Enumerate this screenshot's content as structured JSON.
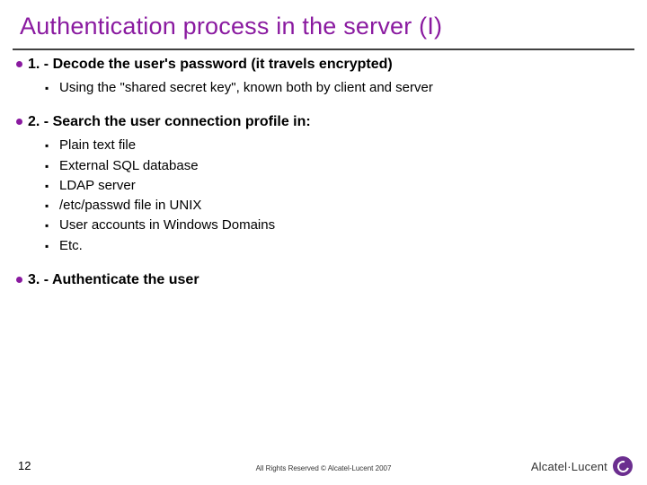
{
  "colors": {
    "accent": "#8a1aa0",
    "rule": "#414141",
    "text": "#000000",
    "brand_icon_bg": "#6b2e8f",
    "brand_text": "#333333"
  },
  "title": "Authentication process in the server (I)",
  "points": [
    {
      "label": "1. - Decode the user's password (it travels encrypted)",
      "subitems": [
        "Using the \"shared secret key\", known both by client and server"
      ]
    },
    {
      "label": "2. - Search the user connection profile in:",
      "subitems": [
        "Plain text file",
        "External SQL database",
        "LDAP server",
        "/etc/passwd file in UNIX",
        "User accounts in Windows Domains",
        "Etc."
      ]
    },
    {
      "label": "3. - Authenticate the user",
      "subitems": []
    }
  ],
  "page_number": "12",
  "copyright": "All Rights Reserved © Alcatel-Lucent 2007",
  "brand": "Alcatel·Lucent"
}
